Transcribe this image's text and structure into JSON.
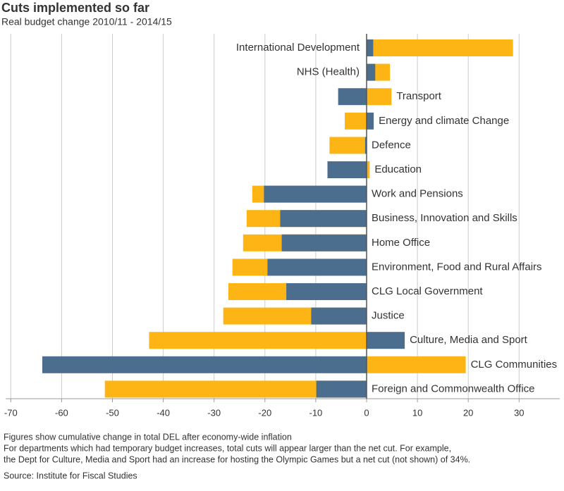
{
  "chart_data": {
    "type": "overlay-bar",
    "title": "Cuts implemented so far",
    "subtitle": "Real budget change 2010/11 - 2014/15",
    "categories": [
      "International Development",
      "NHS (Health)",
      "Transport",
      "Energy and climate Change",
      "Defence",
      "Education",
      "Work and Pensions",
      "Business, Innovation and Skills",
      "Home Office",
      "Environment, Food and Rural Affairs",
      "CLG Local Government",
      "Justice",
      "Culture, Media and Sport",
      "CLG Communities",
      "Foreign and Commonwealth Office"
    ],
    "series": [
      {
        "color": "#fdb515",
        "values": [
          28.8,
          4.6,
          4.9,
          -4.3,
          -7.3,
          0.6,
          -22.5,
          -23.6,
          -24.3,
          -26.4,
          -27.2,
          -28.2,
          -42.8,
          19.5,
          -51.5
        ]
      },
      {
        "color": "#4b6e8f",
        "values": [
          1.3,
          1.7,
          -5.6,
          1.4,
          -0.3,
          -7.7,
          -20.2,
          -17.0,
          -16.7,
          -19.5,
          -15.8,
          -10.9,
          7.5,
          -63.8,
          -9.9
        ]
      }
    ],
    "xlim": [
      -71,
      38
    ],
    "xticks": [
      -70,
      -60,
      -50,
      -40,
      -30,
      -20,
      -10,
      0,
      10,
      20,
      30
    ],
    "grid": true,
    "notes": [
      "Figures show cumulative change in total DEL after economy-wide inflation",
      "For departments which had temporary budget increases, total cuts will appear larger than the net cut. For example,",
      "the Dept for Culture, Media and Sport had an increase for hosting the Olympic Games but a net cut (not shown) of 34%."
    ],
    "source": "Source: Institute for Fiscal Studies"
  }
}
